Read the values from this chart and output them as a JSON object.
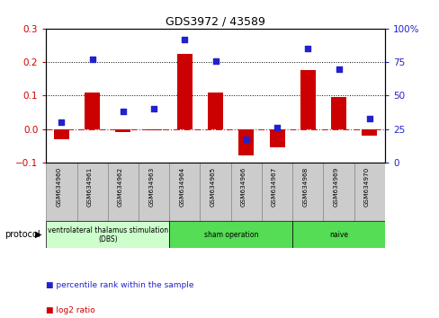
{
  "title": "GDS3972 / 43589",
  "samples": [
    "GSM634960",
    "GSM634961",
    "GSM634962",
    "GSM634963",
    "GSM634964",
    "GSM634965",
    "GSM634966",
    "GSM634967",
    "GSM634968",
    "GSM634969",
    "GSM634970"
  ],
  "log2_ratio": [
    -0.03,
    0.11,
    -0.01,
    -0.005,
    0.225,
    0.11,
    -0.08,
    -0.055,
    0.175,
    0.095,
    -0.02
  ],
  "percentile_rank": [
    30,
    77,
    38,
    40,
    92,
    76,
    17,
    26,
    85,
    70,
    33
  ],
  "ylim_left": [
    -0.1,
    0.3
  ],
  "ylim_right": [
    0,
    100
  ],
  "yticks_left": [
    -0.1,
    0,
    0.1,
    0.2,
    0.3
  ],
  "yticks_right": [
    0,
    25,
    50,
    75,
    100
  ],
  "bar_color": "#cc0000",
  "dot_color": "#2222cc",
  "left_color": "#cc0000",
  "right_color": "#2222cc",
  "zero_line_color": "#cc2222",
  "dotted_line_color": "#000000",
  "protocol_groups": [
    {
      "label": "ventrolateral thalamus stimulation\n(DBS)",
      "start": 0,
      "end": 3,
      "color": "#ccffcc"
    },
    {
      "label": "sham operation",
      "start": 4,
      "end": 7,
      "color": "#55dd55"
    },
    {
      "label": "naive",
      "start": 8,
      "end": 10,
      "color": "#55dd55"
    }
  ],
  "legend_items": [
    {
      "label": "log2 ratio",
      "color": "#cc0000"
    },
    {
      "label": "percentile rank within the sample",
      "color": "#2222cc"
    }
  ],
  "protocol_label": "protocol",
  "bg_color": "#ffffff",
  "sample_box_color": "#cccccc",
  "sample_box_edge": "#888888"
}
